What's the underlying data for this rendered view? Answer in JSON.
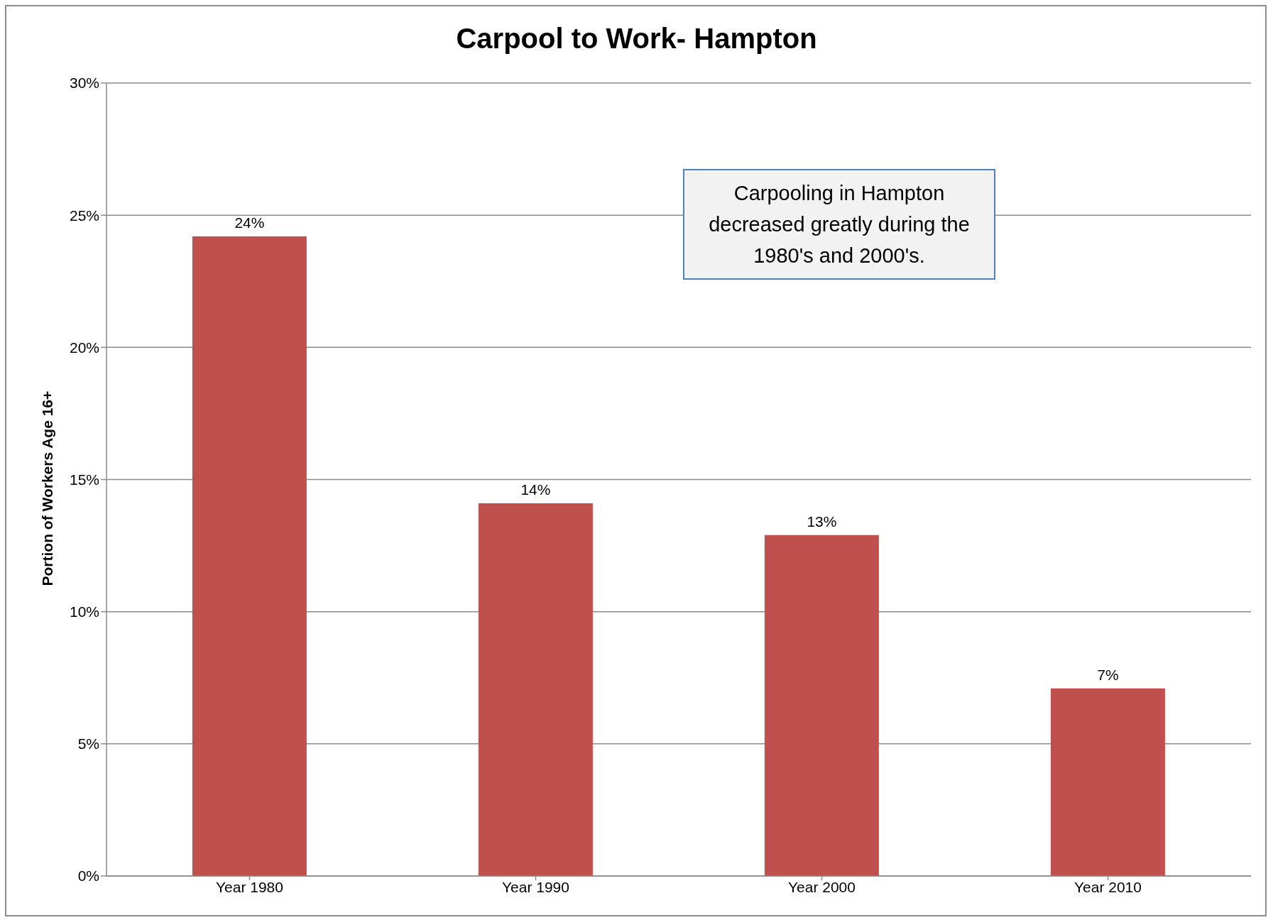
{
  "chart_data": {
    "type": "bar",
    "title": "Carpool to Work- Hampton",
    "ylabel": "Portion of Workers Age 16+",
    "categories": [
      "Year 1980",
      "Year 1990",
      "Year 2000",
      "Year 2010"
    ],
    "values": [
      24.2,
      14.1,
      12.9,
      7.1
    ],
    "value_labels": [
      "24%",
      "14%",
      "13%",
      "7%"
    ],
    "color": "#c0504d",
    "ylim": [
      0,
      30
    ],
    "yticks": [
      {
        "value": 0,
        "label": "0%"
      },
      {
        "value": 5,
        "label": "5%"
      },
      {
        "value": 10,
        "label": "10%"
      },
      {
        "value": 15,
        "label": "15%"
      },
      {
        "value": 20,
        "label": "20%"
      },
      {
        "value": 25,
        "label": "25%"
      },
      {
        "value": 30,
        "label": "30%"
      }
    ],
    "grid": "y",
    "annotations": [
      "Carpooling in Hampton decreased greatly during the 1980's and 2000's."
    ]
  }
}
